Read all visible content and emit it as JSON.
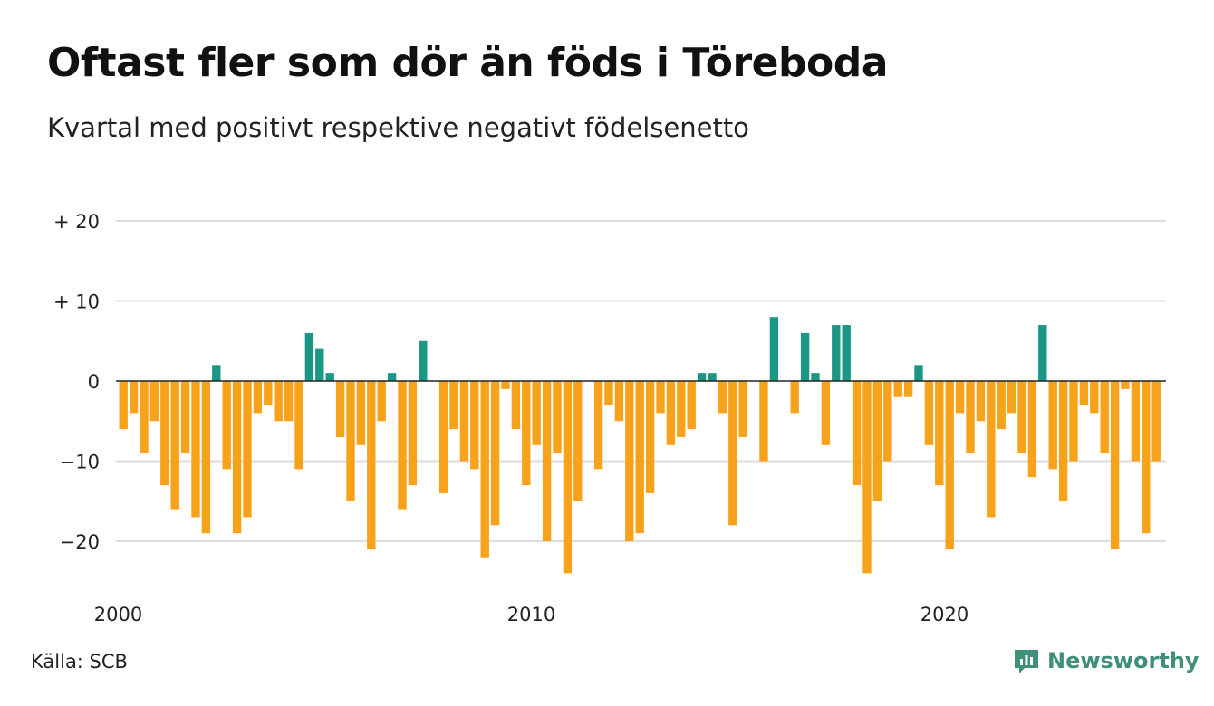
{
  "title": "Oftast fler som dör än föds i Töreboda",
  "subtitle": "Kvartal med positivt respektive negativt födelsenetto",
  "source": "Källa: SCB",
  "brand": {
    "name": "Newsworthy",
    "icon": "newsworthy-logo-icon",
    "color": "#3f8f79"
  },
  "colors": {
    "positive": "#1a9885",
    "negative": "#f7a21b",
    "grid": "#dddddd",
    "zero_line": "#222222"
  },
  "chart_data": {
    "type": "bar",
    "x_start": "2000 Q1",
    "x_step": "quarter",
    "xticks": [
      "2000",
      "2010",
      "2020"
    ],
    "yticks": [
      20,
      10,
      0,
      -10,
      -20
    ],
    "ytick_labels": [
      "+ 20",
      "+ 10",
      "0",
      "−10",
      "−20"
    ],
    "ylim": [
      -25,
      20
    ],
    "grid": true,
    "values": [
      -6,
      -4,
      -9,
      -5,
      -13,
      -16,
      -9,
      -17,
      -19,
      2,
      -11,
      -19,
      -17,
      -4,
      -3,
      -5,
      -5,
      -11,
      6,
      4,
      1,
      -7,
      -15,
      -8,
      -21,
      -5,
      1,
      -16,
      -13,
      5,
      0,
      -14,
      -6,
      -10,
      -11,
      -22,
      -18,
      -1,
      -6,
      -13,
      -8,
      -20,
      -9,
      -24,
      -15,
      0,
      -11,
      -3,
      -5,
      -20,
      -19,
      -14,
      -4,
      -8,
      -7,
      -6,
      1,
      1,
      -4,
      -18,
      -7,
      0,
      -10,
      8,
      0,
      -4,
      6,
      1,
      -8,
      7,
      7,
      -13,
      -24,
      -15,
      -10,
      -2,
      -2,
      2,
      -8,
      -13,
      -21,
      -4,
      -9,
      -5,
      -17,
      -6,
      -4,
      -9,
      -12,
      7,
      -11,
      -15,
      -10,
      -3,
      -4,
      -9,
      -21,
      -1,
      -10,
      -19,
      -10
    ]
  }
}
